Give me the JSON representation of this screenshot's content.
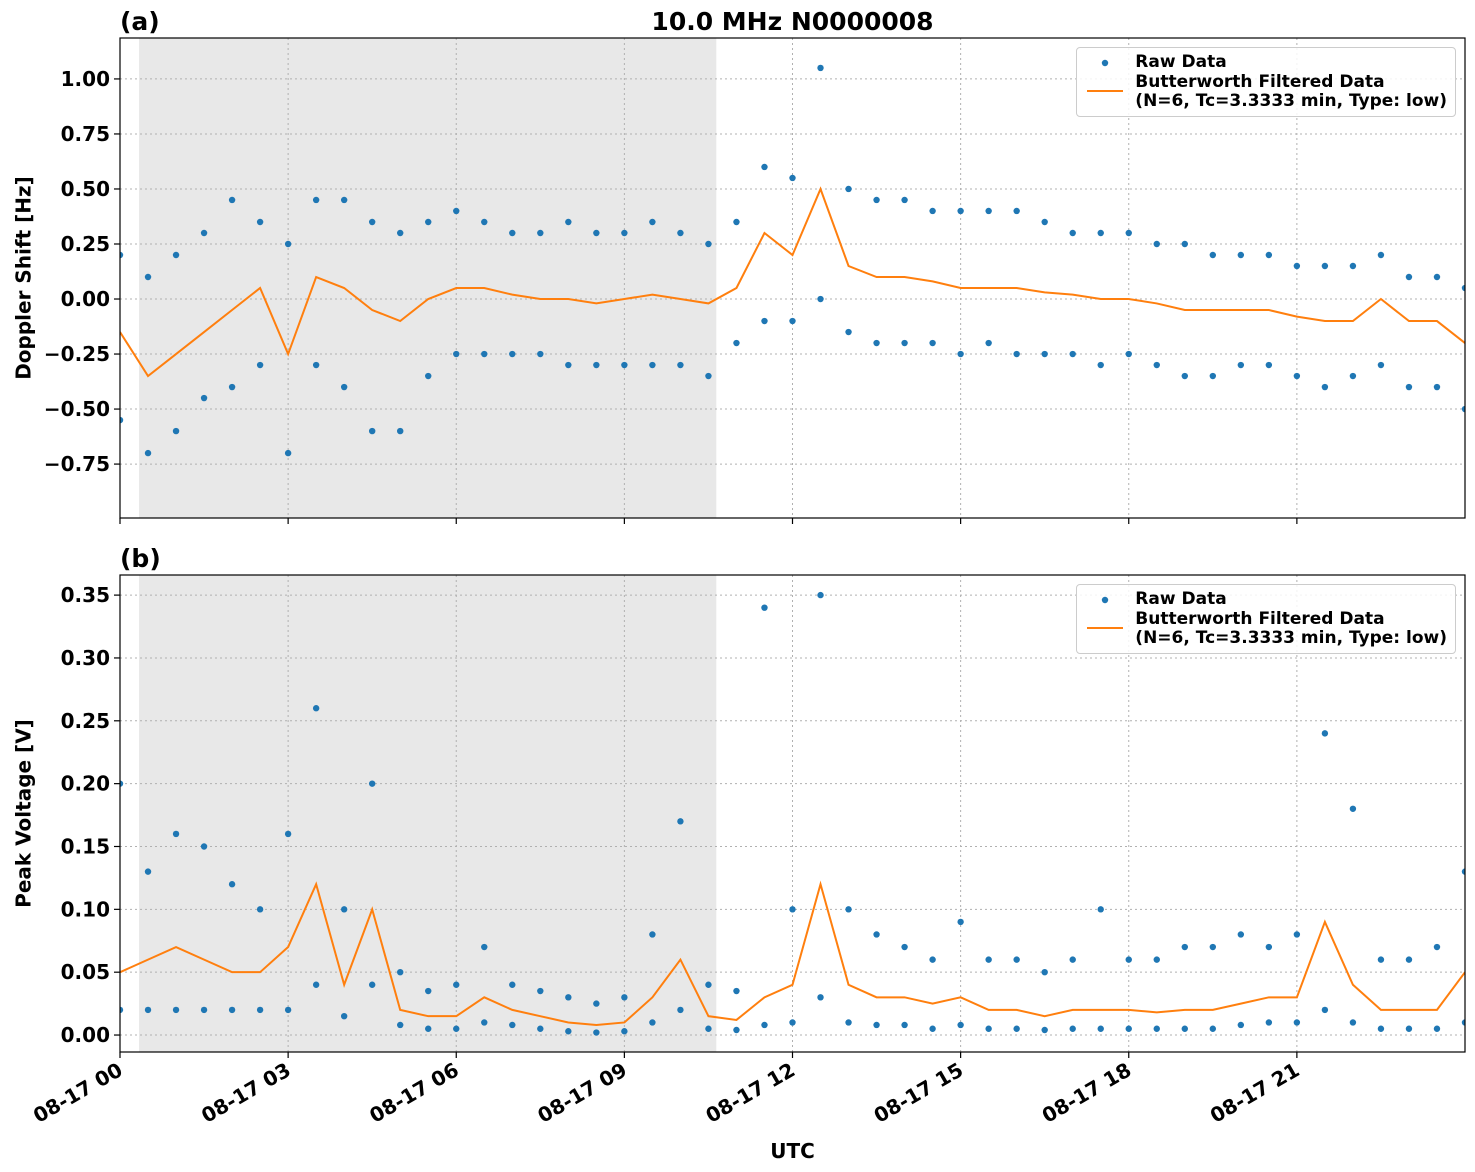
{
  "chart_data": [
    {
      "type": "line",
      "panel_label": "(a)",
      "title": "10.0 MHz N0000008",
      "y_label": "Doppler Shift [Hz]",
      "xlim": [
        0,
        24
      ],
      "ylim": [
        -0.995,
        1.186
      ],
      "grid": true,
      "shade": [
        0.34,
        10.64
      ],
      "shade_color": "#e8e8e8",
      "legend": "upper right",
      "xticks": [
        0,
        3,
        6,
        9,
        12,
        15,
        18,
        21
      ],
      "yticks": [
        {
          "value": -0.75,
          "label": "−0.75"
        },
        {
          "value": -0.5,
          "label": "−0.50"
        },
        {
          "value": -0.25,
          "label": "−0.25"
        },
        {
          "value": 0,
          "label": "0.00"
        },
        {
          "value": 0.25,
          "label": "0.25"
        },
        {
          "value": 0.5,
          "label": "0.50"
        },
        {
          "value": 0.75,
          "label": "0.75"
        },
        {
          "value": 1.0,
          "label": "1.00"
        }
      ],
      "series": [
        {
          "name": "Raw Data",
          "type": "scatter",
          "color": "#1f77b4",
          "x": [
            0,
            0,
            0.5,
            0.5,
            1,
            1,
            1.5,
            1.5,
            2,
            2,
            2.5,
            2.5,
            3,
            3,
            3.5,
            3.5,
            4,
            4,
            4.5,
            4.5,
            5,
            5,
            5.5,
            5.5,
            6,
            6,
            6.5,
            6.5,
            7,
            7,
            7.5,
            7.5,
            8,
            8,
            8.5,
            8.5,
            9,
            9,
            9.5,
            9.5,
            10,
            10,
            10.5,
            10.5,
            11,
            11,
            11.5,
            11.5,
            12,
            12,
            12.5,
            12.5,
            13,
            13,
            13.5,
            13.5,
            14,
            14,
            14.5,
            14.5,
            15,
            15,
            15.5,
            15.5,
            16,
            16,
            16.5,
            16.5,
            17,
            17,
            17.5,
            17.5,
            18,
            18,
            18.5,
            18.5,
            19,
            19,
            19.5,
            19.5,
            20,
            20,
            20.5,
            20.5,
            21,
            21,
            21.5,
            21.5,
            22,
            22,
            22.5,
            22.5,
            23,
            23,
            23.5,
            23.5,
            24,
            24
          ],
          "values": [
            -0.55,
            0.2,
            -0.7,
            0.1,
            -0.6,
            0.2,
            -0.45,
            0.3,
            -0.4,
            0.45,
            -0.3,
            0.35,
            -0.7,
            0.25,
            -0.3,
            0.45,
            -0.4,
            0.45,
            -0.6,
            0.35,
            -0.6,
            0.3,
            -0.35,
            0.35,
            -0.25,
            0.4,
            -0.25,
            0.35,
            -0.25,
            0.3,
            -0.25,
            0.3,
            -0.3,
            0.35,
            -0.3,
            0.3,
            -0.3,
            0.3,
            -0.3,
            0.35,
            -0.3,
            0.3,
            -0.35,
            0.25,
            -0.2,
            0.35,
            -0.1,
            0.6,
            -0.1,
            0.55,
            0.0,
            1.05,
            -0.15,
            0.5,
            -0.2,
            0.45,
            -0.2,
            0.45,
            -0.2,
            0.4,
            -0.25,
            0.4,
            -0.2,
            0.4,
            -0.25,
            0.4,
            -0.25,
            0.35,
            -0.25,
            0.3,
            -0.3,
            0.3,
            -0.25,
            0.3,
            -0.3,
            0.25,
            -0.35,
            0.25,
            -0.35,
            0.2,
            -0.3,
            0.2,
            -0.3,
            0.2,
            -0.35,
            0.15,
            -0.4,
            0.15,
            -0.35,
            0.15,
            -0.3,
            0.2,
            -0.4,
            0.1,
            -0.4,
            0.1,
            -0.5,
            0.05
          ]
        },
        {
          "name": "Butterworth Filtered Data\n(N=6, Tc=3.3333 min, Type: low)",
          "type": "line",
          "color": "#ff7f0e",
          "x": [
            0,
            0.5,
            1,
            1.5,
            2,
            2.5,
            3,
            3.5,
            4,
            4.5,
            5,
            5.5,
            6,
            6.5,
            7,
            7.5,
            8,
            8.5,
            9,
            9.5,
            10,
            10.5,
            11,
            11.5,
            12,
            12.5,
            13,
            13.5,
            14,
            14.5,
            15,
            15.5,
            16,
            16.5,
            17,
            17.5,
            18,
            18.5,
            19,
            19.5,
            20,
            20.5,
            21,
            21.5,
            22,
            22.5,
            23,
            23.5,
            24
          ],
          "values": [
            -0.15,
            -0.35,
            -0.25,
            -0.15,
            -0.05,
            0.05,
            -0.25,
            0.1,
            0.05,
            -0.05,
            -0.1,
            0.0,
            0.05,
            0.05,
            0.02,
            0.0,
            0.0,
            -0.02,
            0.0,
            0.02,
            0.0,
            -0.02,
            0.05,
            0.3,
            0.2,
            0.5,
            0.15,
            0.1,
            0.1,
            0.08,
            0.05,
            0.05,
            0.05,
            0.03,
            0.02,
            0.0,
            0.0,
            -0.02,
            -0.05,
            -0.05,
            -0.05,
            -0.05,
            -0.08,
            -0.1,
            -0.1,
            0.0,
            -0.1,
            -0.1,
            -0.2
          ]
        }
      ]
    },
    {
      "type": "line",
      "panel_label": "(b)",
      "y_label": "Peak Voltage [V]",
      "x_label": "UTC",
      "xlim": [
        0,
        24
      ],
      "ylim": [
        -0.0135,
        0.366
      ],
      "grid": true,
      "shade": [
        0.34,
        10.64
      ],
      "shade_color": "#e8e8e8",
      "legend": "upper right",
      "xticks": [
        {
          "value": 0,
          "label": "08-17 00"
        },
        {
          "value": 3,
          "label": "08-17 03"
        },
        {
          "value": 6,
          "label": "08-17 06"
        },
        {
          "value": 9,
          "label": "08-17 09"
        },
        {
          "value": 12,
          "label": "08-17 12"
        },
        {
          "value": 15,
          "label": "08-17 15"
        },
        {
          "value": 18,
          "label": "08-17 18"
        },
        {
          "value": 21,
          "label": "08-17 21"
        }
      ],
      "yticks": [
        {
          "value": 0,
          "label": "0.00"
        },
        {
          "value": 0.05,
          "label": "0.05"
        },
        {
          "value": 0.1,
          "label": "0.10"
        },
        {
          "value": 0.15,
          "label": "0.15"
        },
        {
          "value": 0.2,
          "label": "0.20"
        },
        {
          "value": 0.25,
          "label": "0.25"
        },
        {
          "value": 0.3,
          "label": "0.30"
        },
        {
          "value": 0.35,
          "label": "0.35"
        }
      ],
      "series": [
        {
          "name": "Raw Data",
          "type": "scatter",
          "color": "#1f77b4",
          "x": [
            0,
            0,
            0.5,
            0.5,
            1,
            1,
            1.5,
            1.5,
            2,
            2,
            2.5,
            2.5,
            3,
            3,
            3.5,
            3.5,
            4,
            4,
            4.5,
            4.5,
            5,
            5,
            5.5,
            5.5,
            6,
            6,
            6.5,
            6.5,
            7,
            7,
            7.5,
            7.5,
            8,
            8,
            8.5,
            8.5,
            9,
            9,
            9.5,
            9.5,
            10,
            10,
            10.5,
            10.5,
            11,
            11,
            11.5,
            11.5,
            12,
            12,
            12.5,
            12.5,
            13,
            13,
            13.5,
            13.5,
            14,
            14,
            14.5,
            14.5,
            15,
            15,
            15.5,
            15.5,
            16,
            16,
            16.5,
            16.5,
            17,
            17,
            17.5,
            17.5,
            18,
            18,
            18.5,
            18.5,
            19,
            19,
            19.5,
            19.5,
            20,
            20,
            20.5,
            20.5,
            21,
            21,
            21.5,
            21.5,
            22,
            22,
            22.5,
            22.5,
            23,
            23,
            23.5,
            23.5,
            24,
            24
          ],
          "values": [
            0.02,
            0.2,
            0.02,
            0.13,
            0.02,
            0.16,
            0.02,
            0.15,
            0.02,
            0.12,
            0.02,
            0.1,
            0.02,
            0.16,
            0.04,
            0.26,
            0.015,
            0.1,
            0.04,
            0.2,
            0.008,
            0.05,
            0.005,
            0.035,
            0.005,
            0.04,
            0.01,
            0.07,
            0.008,
            0.04,
            0.005,
            0.035,
            0.003,
            0.03,
            0.002,
            0.025,
            0.003,
            0.03,
            0.01,
            0.08,
            0.02,
            0.17,
            0.005,
            0.04,
            0.004,
            0.035,
            0.008,
            0.34,
            0.01,
            0.1,
            0.03,
            0.35,
            0.01,
            0.1,
            0.008,
            0.08,
            0.008,
            0.07,
            0.005,
            0.06,
            0.008,
            0.09,
            0.005,
            0.06,
            0.005,
            0.06,
            0.004,
            0.05,
            0.005,
            0.06,
            0.005,
            0.1,
            0.005,
            0.06,
            0.005,
            0.06,
            0.005,
            0.07,
            0.005,
            0.07,
            0.008,
            0.08,
            0.01,
            0.07,
            0.01,
            0.08,
            0.02,
            0.24,
            0.01,
            0.18,
            0.005,
            0.06,
            0.005,
            0.06,
            0.005,
            0.07,
            0.01,
            0.13
          ]
        },
        {
          "name": "Butterworth Filtered Data\n(N=6, Tc=3.3333 min, Type: low)",
          "type": "line",
          "color": "#ff7f0e",
          "x": [
            0,
            0.5,
            1,
            1.5,
            2,
            2.5,
            3,
            3.5,
            4,
            4.5,
            5,
            5.5,
            6,
            6.5,
            7,
            7.5,
            8,
            8.5,
            9,
            9.5,
            10,
            10.5,
            11,
            11.5,
            12,
            12.5,
            13,
            13.5,
            14,
            14.5,
            15,
            15.5,
            16,
            16.5,
            17,
            17.5,
            18,
            18.5,
            19,
            19.5,
            20,
            20.5,
            21,
            21.5,
            22,
            22.5,
            23,
            23.5,
            24
          ],
          "values": [
            0.05,
            0.06,
            0.07,
            0.06,
            0.05,
            0.05,
            0.07,
            0.12,
            0.04,
            0.1,
            0.02,
            0.015,
            0.015,
            0.03,
            0.02,
            0.015,
            0.01,
            0.008,
            0.01,
            0.03,
            0.06,
            0.015,
            0.012,
            0.03,
            0.04,
            0.12,
            0.04,
            0.03,
            0.03,
            0.025,
            0.03,
            0.02,
            0.02,
            0.015,
            0.02,
            0.02,
            0.02,
            0.018,
            0.02,
            0.02,
            0.025,
            0.03,
            0.03,
            0.09,
            0.04,
            0.02,
            0.02,
            0.02,
            0.05
          ]
        }
      ]
    }
  ]
}
